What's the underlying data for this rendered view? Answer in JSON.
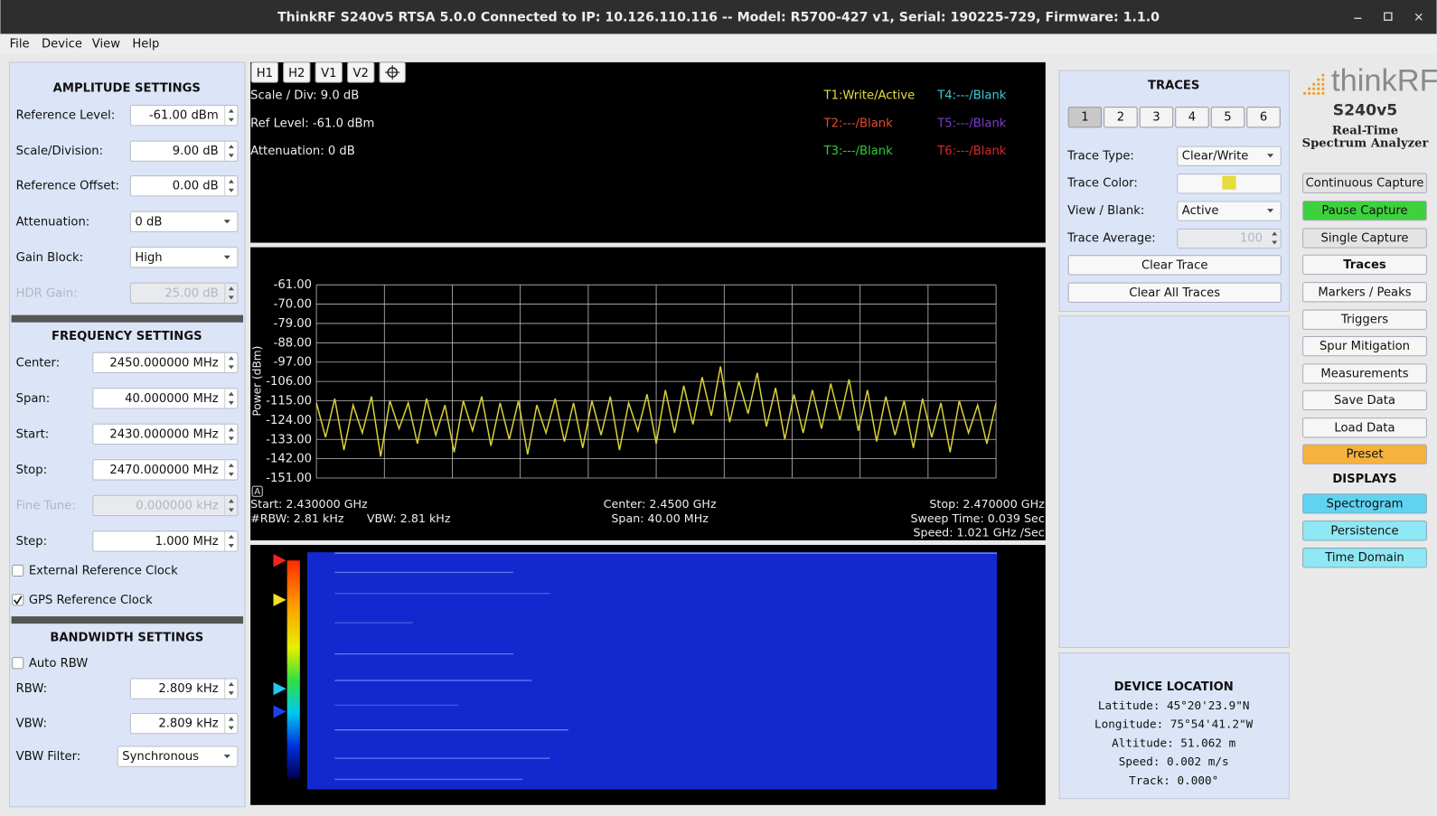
{
  "window": {
    "title": "ThinkRF S240v5 RTSA 5.0.0 Connected to IP: 10.126.110.116 -- Model: R5700-427 v1, Serial: 190225-729, Firmware: 1.1.0"
  },
  "menu": [
    "File",
    "Device",
    "View",
    "Help"
  ],
  "amplitude": {
    "title": "AMPLITUDE SETTINGS",
    "fields": [
      {
        "label": "Reference Level:",
        "value": "-61.00 dBm",
        "control": "spin",
        "enabled": true
      },
      {
        "label": "Scale/Division:",
        "value": "9.00 dB",
        "control": "spin",
        "enabled": true
      },
      {
        "label": "Reference Offset:",
        "value": "0.00 dB",
        "control": "spin",
        "enabled": true
      },
      {
        "label": "Attenuation:",
        "value": "0 dB",
        "control": "dropdown",
        "enabled": true
      },
      {
        "label": "Gain Block:",
        "value": "High",
        "control": "dropdown",
        "enabled": true
      },
      {
        "label": "HDR Gain:",
        "value": "25.00 dB",
        "control": "spin",
        "enabled": false
      }
    ]
  },
  "frequency": {
    "title": "FREQUENCY SETTINGS",
    "fields": [
      {
        "label": "Center:",
        "value": "2450.000000 MHz",
        "control": "spin",
        "enabled": true
      },
      {
        "label": "Span:",
        "value": "40.000000 MHz",
        "control": "spin",
        "enabled": true
      },
      {
        "label": "Start:",
        "value": "2430.000000 MHz",
        "control": "spin",
        "enabled": true
      },
      {
        "label": "Stop:",
        "value": "2470.000000 MHz",
        "control": "spin",
        "enabled": true
      },
      {
        "label": "Fine Tune:",
        "value": "0.000000 kHz",
        "control": "spin",
        "enabled": false
      },
      {
        "label": "Step:",
        "value": "1.000 MHz",
        "control": "spin",
        "enabled": true
      }
    ],
    "checkboxes": [
      {
        "label": "External Reference Clock",
        "checked": false
      },
      {
        "label": "GPS Reference Clock",
        "checked": true
      }
    ]
  },
  "bandwidth": {
    "title": "BANDWIDTH SETTINGS",
    "checkboxes": [
      {
        "label": "Auto RBW",
        "checked": false
      }
    ],
    "fields": [
      {
        "label": "RBW:",
        "value": "2.809 kHz",
        "control": "spin",
        "enabled": true
      },
      {
        "label": "VBW:",
        "value": "2.809 kHz",
        "control": "spin",
        "enabled": true
      },
      {
        "label": "VBW Filter:",
        "value": "Synchronous",
        "control": "dropdown",
        "enabled": true
      }
    ]
  },
  "toolbar": [
    "H1",
    "H2",
    "V1",
    "V2"
  ],
  "info": {
    "lines": [
      "Scale / Div: 9.0 dB",
      "Ref Level: -61.0 dBm",
      "Attenuation: 0 dB"
    ],
    "traces": [
      {
        "label": "T1:Write/Active",
        "color": "#e6dc3c"
      },
      {
        "label": "T4:---/Blank",
        "color": "#3cc8d8"
      },
      {
        "label": "T2:---/Blank",
        "color": "#e84a2a"
      },
      {
        "label": "T5:---/Blank",
        "color": "#7a3cc8"
      },
      {
        "label": "T3:---/Blank",
        "color": "#2ccc3c"
      },
      {
        "label": "T6:---/Blank",
        "color": "#d8282a"
      }
    ]
  },
  "chart_data": {
    "type": "line",
    "ylabel": "Power (dBm)",
    "color": "#d8cf3a",
    "grid": true,
    "ylim": [
      -151,
      -61
    ],
    "yticks": [
      {
        "value": -61,
        "label": "-61.00"
      },
      {
        "value": -70,
        "label": "-70.00"
      },
      {
        "value": -79,
        "label": "-79.00"
      },
      {
        "value": -88,
        "label": "-88.00"
      },
      {
        "value": -97,
        "label": "-97.00"
      },
      {
        "value": -106,
        "label": "-106.00"
      },
      {
        "value": -115,
        "label": "-115.00"
      },
      {
        "value": -124,
        "label": "-124.00"
      },
      {
        "value": -133,
        "label": "-133.00"
      },
      {
        "value": -142,
        "label": "-142.00"
      },
      {
        "value": -151,
        "label": "-151.00"
      }
    ],
    "values": [
      -116,
      -132,
      -114,
      -138,
      -117,
      -130,
      -113,
      -141,
      -115,
      -128,
      -116,
      -135,
      -114,
      -131,
      -117,
      -139,
      -115,
      -129,
      -113,
      -136,
      -116,
      -133,
      -115,
      -140,
      -117,
      -130,
      -114,
      -134,
      -116,
      -137,
      -115,
      -131,
      -113,
      -138,
      -116,
      -129,
      -112,
      -135,
      -110,
      -130,
      -108,
      -126,
      -104,
      -122,
      -99,
      -125,
      -106,
      -121,
      -102,
      -127,
      -109,
      -133,
      -112,
      -130,
      -110,
      -128,
      -107,
      -124,
      -105,
      -129,
      -110,
      -134,
      -113,
      -131,
      -115,
      -137,
      -114,
      -132,
      -116,
      -139,
      -115,
      -130,
      -117,
      -135,
      -116
    ],
    "footer_left": [
      "Start: 2.430000 GHz",
      "#RBW: 2.81 kHz",
      "VBW: 2.81 kHz"
    ],
    "footer_center": [
      "Center: 2.4500 GHz",
      "Span: 40.00 MHz"
    ],
    "footer_right": [
      "Stop: 2.470000 GHz",
      "Sweep Time: 0.039 Sec",
      "Speed: 1.021 GHz /Sec"
    ],
    "marker_button": "A"
  },
  "traces_panel": {
    "title": "TRACES",
    "tabs": [
      "1",
      "2",
      "3",
      "4",
      "5",
      "6"
    ],
    "rows": [
      {
        "label": "Trace Type:",
        "value": "Clear/Write"
      },
      {
        "label": "Trace Color:",
        "color": "#e6dc3c"
      },
      {
        "label": "View / Blank:",
        "value": "Active"
      },
      {
        "label": "Trace Average:",
        "value": "100"
      }
    ],
    "buttons": [
      "Clear Trace",
      "Clear All Traces"
    ]
  },
  "location": {
    "title": "DEVICE LOCATION",
    "lines": [
      "Latitude: 45°20'23.9\"N",
      "Longitude: 75°54'41.2\"W",
      "Altitude: 51.062 m",
      "Speed: 0.002 m/s",
      "Track: 0.000°"
    ]
  },
  "logo": {
    "brand": "thinkRF",
    "model": "S240v5",
    "tagline": [
      "Real-Time",
      "Spectrum Analyzer"
    ]
  },
  "controls": {
    "buttons": [
      {
        "label": "Continuous Capture",
        "color": "#e4e4e4"
      },
      {
        "label": "Pause Capture",
        "color": "#3ed13e"
      },
      {
        "label": "Single Capture",
        "color": "#e4e4e4"
      },
      {
        "label": "Traces",
        "color": "#f6f6f6",
        "bold": true
      },
      {
        "label": "Markers / Peaks",
        "color": "#f6f6f6"
      },
      {
        "label": "Triggers",
        "color": "#f6f6f6"
      },
      {
        "label": "Spur Mitigation",
        "color": "#f6f6f6"
      },
      {
        "label": "Measurements",
        "color": "#f6f6f6"
      },
      {
        "label": "Save Data",
        "color": "#f6f6f6"
      },
      {
        "label": "Load Data",
        "color": "#f6f6f6"
      },
      {
        "label": "Preset",
        "color": "#f6b23c"
      }
    ],
    "displays_title": "DISPLAYS",
    "displays": [
      {
        "label": "Spectrogram",
        "color": "#5fd3f0"
      },
      {
        "label": "Persistence",
        "color": "#8ee8f3"
      },
      {
        "label": "Time Domain",
        "color": "#8ee8f3"
      }
    ]
  }
}
